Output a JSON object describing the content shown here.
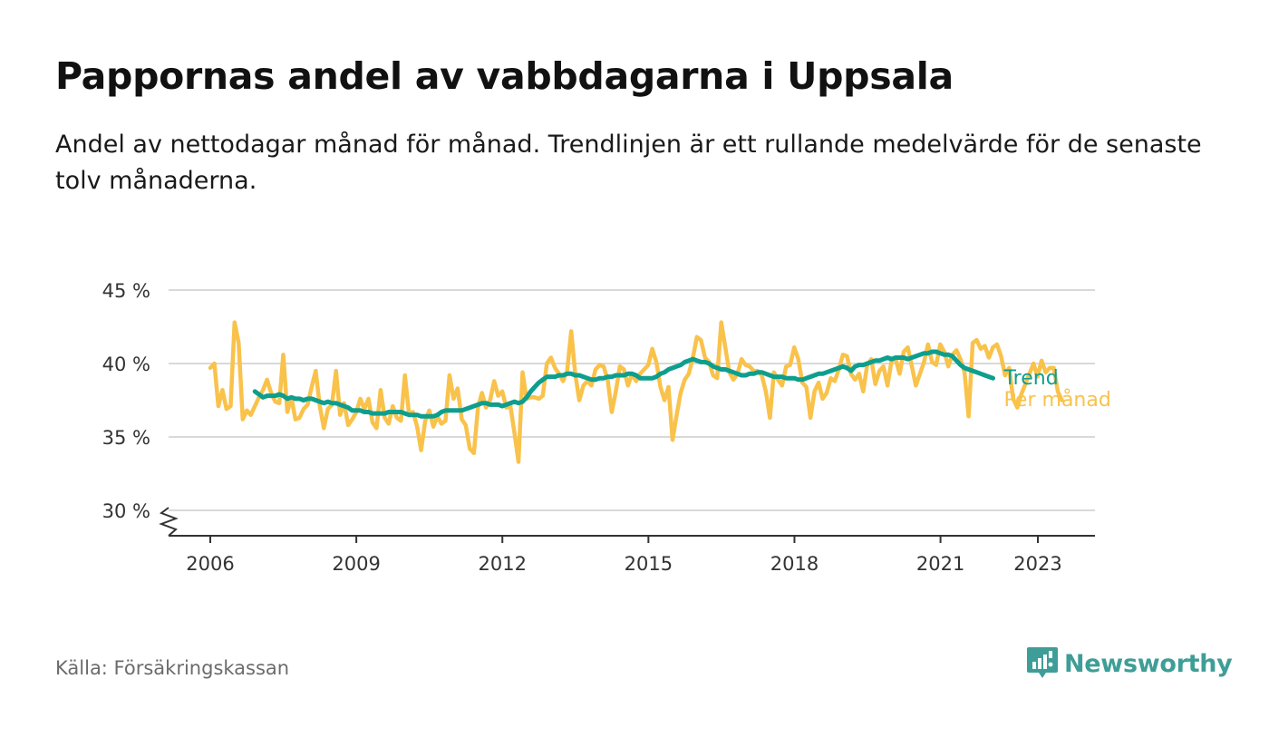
{
  "header": {
    "title": "Pappornas andel av vabbdagarna i Uppsala",
    "subtitle": "Andel av nettodagar månad för månad. Trendlinjen är ett rullande medelvärde för de senaste tolv månaderna."
  },
  "footer": {
    "source": "Källa: Försäkringskassan",
    "brand": "Newsworthy"
  },
  "colors": {
    "trend": "#0e9e8e",
    "monthly": "#f9c24b",
    "grid": "#d9d9d9",
    "axis": "#333333",
    "brand": "#3e9e97"
  },
  "chart_data": {
    "type": "line",
    "title": "Pappornas andel av vabbdagarna i Uppsala",
    "xlabel": "",
    "ylabel": "",
    "ylim": [
      30,
      45
    ],
    "y_ticks": [
      30,
      35,
      40,
      45
    ],
    "y_tick_labels": [
      "30 %",
      "35 %",
      "40 %",
      "45 %"
    ],
    "x_ticks": [
      2006,
      2009,
      2012,
      2015,
      2018,
      2021,
      2023
    ],
    "x_tick_labels": [
      "2006",
      "2009",
      "2012",
      "2015",
      "2018",
      "2021",
      "2023"
    ],
    "grid": true,
    "axis_break": true,
    "legend_placement": "right-inline",
    "series": [
      {
        "name": "Per månad",
        "start": 2006.0,
        "step": 0.0833,
        "values": [
          39.7,
          40,
          37.1,
          38.2,
          36.9,
          37.1,
          42.8,
          41.4,
          36.2,
          36.8,
          36.5,
          37.1,
          37.7,
          38.2,
          38.9,
          38,
          37.4,
          37.3,
          40.6,
          36.7,
          37.7,
          36.2,
          36.3,
          36.9,
          37.2,
          38.4,
          39.5,
          37.1,
          35.6,
          36.9,
          37.2,
          39.5,
          36.5,
          37.3,
          35.8,
          36.2,
          36.7,
          37.6,
          36.9,
          37.6,
          36,
          35.6,
          38.2,
          36.3,
          35.9,
          37.1,
          36.3,
          36.1,
          39.2,
          36.6,
          36.7,
          35.7,
          34.1,
          36.1,
          36.8,
          35.7,
          36.4,
          35.9,
          36.1,
          39.2,
          37.6,
          38.3,
          36.2,
          35.8,
          34.2,
          33.9,
          37,
          38,
          37,
          37.5,
          38.8,
          37.8,
          38.1,
          37,
          37.1,
          35.3,
          33.3,
          39.4,
          37.6,
          37.7,
          37.7,
          37.6,
          37.8,
          40,
          40.4,
          39.7,
          39.3,
          38.8,
          39.5,
          42.2,
          39.3,
          37.5,
          38.5,
          38.8,
          38.5,
          39.6,
          39.9,
          39.8,
          38.9,
          36.7,
          38.1,
          39.8,
          39.6,
          38.5,
          39.3,
          38.8,
          39.3,
          39.6,
          39.9,
          41,
          40.1,
          38.4,
          37.5,
          38.4,
          34.8,
          36.5,
          38,
          38.9,
          39.3,
          40.4,
          41.8,
          41.6,
          40.4,
          40.1,
          39.2,
          39,
          42.8,
          41.1,
          39.4,
          38.9,
          39.3,
          40.3,
          39.9,
          39.8,
          39.5,
          39.5,
          39.2,
          38.1,
          36.3,
          39.4,
          38.9,
          38.5,
          39.8,
          39.9,
          41.1,
          40.3,
          38.7,
          38.4,
          36.3,
          38.1,
          38.7,
          37.6,
          38,
          39,
          38.8,
          39.6,
          40.6,
          40.5,
          39.3,
          38.9,
          39.3,
          38.1,
          39.9,
          40.3,
          38.6,
          39.5,
          39.8,
          38.5,
          40.2,
          40.3,
          39.3,
          40.8,
          41.1,
          39.8,
          38.5,
          39.3,
          40.1,
          41.3,
          40.1,
          39.9,
          41.3,
          40.8,
          39.8,
          40.6,
          40.9,
          40.3,
          39.4,
          36.4,
          41.4,
          41.6,
          41,
          41.2,
          40.4,
          41.1,
          41.3,
          40.5,
          39.2,
          39.7,
          37.6,
          37,
          37.9,
          38.6,
          39.3,
          40,
          39.1,
          40.2,
          39.4,
          39.7,
          39.7,
          38.1,
          37.5
        ]
      },
      {
        "name": "Trend",
        "start": 2006.917,
        "step": 0.0833,
        "values": [
          38.1,
          37.9,
          37.7,
          37.8,
          37.8,
          37.8,
          37.9,
          37.8,
          37.6,
          37.7,
          37.6,
          37.6,
          37.5,
          37.6,
          37.6,
          37.5,
          37.4,
          37.3,
          37.4,
          37.3,
          37.3,
          37.2,
          37.1,
          37,
          36.8,
          36.8,
          36.8,
          36.7,
          36.7,
          36.6,
          36.6,
          36.6,
          36.6,
          36.7,
          36.7,
          36.7,
          36.7,
          36.6,
          36.5,
          36.5,
          36.5,
          36.4,
          36.4,
          36.4,
          36.4,
          36.5,
          36.7,
          36.8,
          36.8,
          36.8,
          36.8,
          36.8,
          36.9,
          37,
          37.1,
          37.2,
          37.3,
          37.3,
          37.2,
          37.2,
          37.2,
          37.1,
          37.2,
          37.3,
          37.4,
          37.3,
          37.4,
          37.7,
          38.1,
          38.4,
          38.7,
          38.9,
          39.1,
          39.1,
          39.1,
          39.2,
          39.2,
          39.3,
          39.3,
          39.2,
          39.2,
          39.1,
          39,
          38.9,
          38.9,
          39,
          39,
          39.1,
          39.1,
          39.2,
          39.2,
          39.2,
          39.3,
          39.3,
          39.2,
          39,
          39,
          39,
          39,
          39.1,
          39.3,
          39.4,
          39.6,
          39.7,
          39.8,
          39.9,
          40.1,
          40.2,
          40.3,
          40.2,
          40.1,
          40.1,
          40,
          39.8,
          39.7,
          39.6,
          39.6,
          39.5,
          39.4,
          39.3,
          39.2,
          39.2,
          39.3,
          39.3,
          39.4,
          39.4,
          39.3,
          39.2,
          39.1,
          39.1,
          39.1,
          39,
          39,
          39,
          38.9,
          38.9,
          39,
          39.1,
          39.2,
          39.3,
          39.3,
          39.4,
          39.5,
          39.6,
          39.7,
          39.8,
          39.7,
          39.5,
          39.8,
          39.9,
          39.9,
          40,
          40.1,
          40.2,
          40.2,
          40.3,
          40.4,
          40.3,
          40.4,
          40.4,
          40.4,
          40.3,
          40.4,
          40.5,
          40.6,
          40.7,
          40.7,
          40.8,
          40.8,
          40.7,
          40.6,
          40.6,
          40.5,
          40.2,
          39.9,
          39.7,
          39.6,
          39.5,
          39.4,
          39.3,
          39.2,
          39.1,
          39
        ]
      }
    ]
  }
}
